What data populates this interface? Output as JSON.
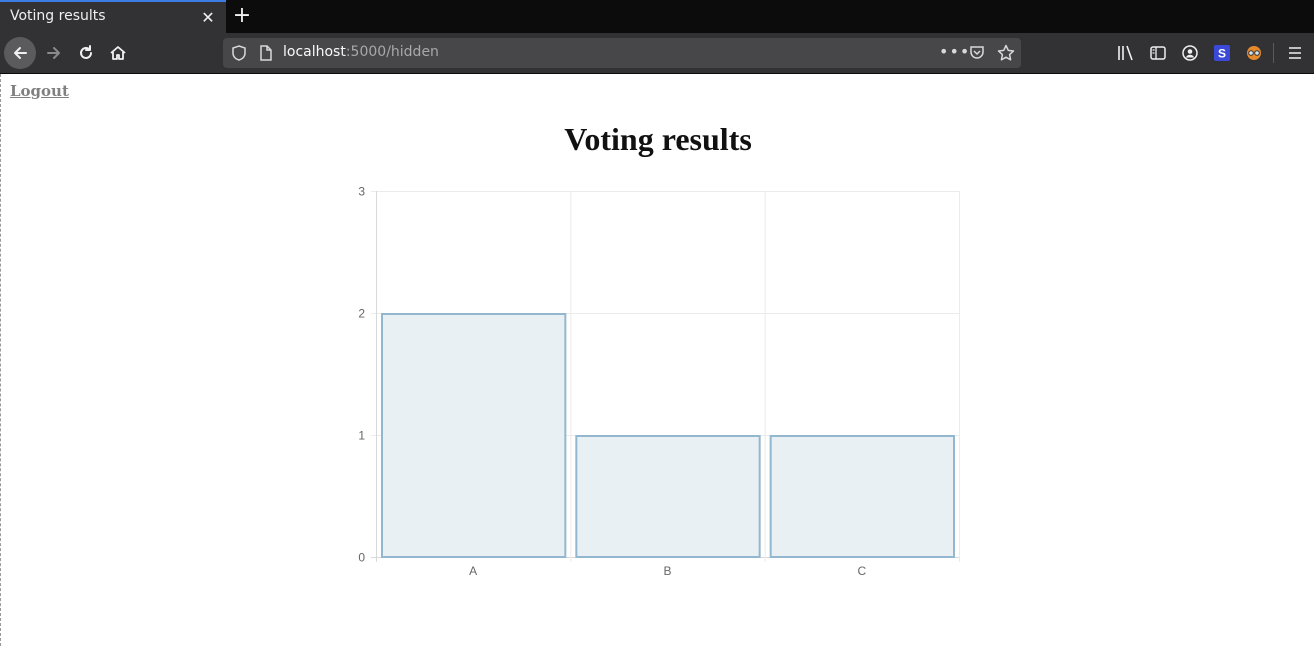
{
  "browser": {
    "tab_title": "Voting results",
    "url_host": "localhost",
    "url_path": ":5000/hidden"
  },
  "page": {
    "logout_label": "Logout",
    "title": "Voting results"
  },
  "chart_data": {
    "type": "bar",
    "title": "",
    "xlabel": "",
    "ylabel": "",
    "categories": [
      "A",
      "B",
      "C"
    ],
    "values": [
      2,
      1,
      1
    ],
    "ylim": [
      0,
      3
    ],
    "yticks": [
      0,
      1,
      2,
      3
    ],
    "grid": true,
    "legend": "none",
    "colors": {
      "fill": "#e8f0f4",
      "stroke": "#93b7cf",
      "grid": "#ebebeb",
      "axis": "#d9d9d9"
    }
  }
}
